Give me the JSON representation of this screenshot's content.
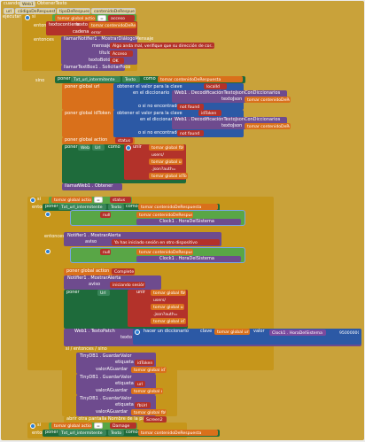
{
  "colors": {
    "event_gold": "#c9a23a",
    "control_gold": "#c6961b",
    "component_green": "#1e6b3b",
    "component_teal": "#39855a",
    "procedure_purple": "#6e4b8e",
    "dict_blue": "#2c59a5",
    "text_red": "#b3322a",
    "variable_orange": "#d9701b",
    "method_purple": "#7b4a9e",
    "logic_green": "#59a646",
    "canvas": "#ececec"
  },
  "event": {
    "when": "cuando",
    "component": "Web1",
    "event_name": "ObtenerTexto",
    "param_url": "url",
    "param_code": "códigoDeRespuesta",
    "param_type": "tipoDeRespuesta",
    "param_content": "contenidoDeRespuesta",
    "do": "ejecutar"
  },
  "b1": {
    "si": "si",
    "get_global": "tomar global action",
    "eq": "=",
    "str_acceso": "acceso",
    "entonces": "entonces",
    "texto": "texto",
    "contiene": "contiene",
    "cadena": "cadena",
    "get_content": "tomar contenidoDeRespuesta",
    "str_error": "error",
    "llamar": "llamar",
    "notif_call": "Notifier1 . MostrarDiálogoMensaje",
    "mensaje": "mensaje",
    "msg": "Algo anda mal, verifique que su dirección de cor...",
    "titulo": "título",
    "str_acceso_title": "Acceso",
    "textoBoton": "textoBotón",
    "str_ok": "OK",
    "focus_call": "TextBox1 . SolicitarFoco",
    "sino": "sino"
  },
  "b2": {
    "poner": "poner",
    "tfurl": "Txt_url_intermitente",
    "texto": "Texto",
    "como": "como",
    "get_content": "tomar contenidoDeRespuesta",
    "poner_global_url": "poner global url",
    "a": "a",
    "obtener": "obtener el valor para la clave",
    "str_localId": "localId",
    "en_dic": "en el diccionario",
    "llamar": "llamar",
    "web1_decode": "Web1 . DecodificaciónTextoJsonConDiccionarios",
    "textoJson": "textoJson",
    "o_si": "o si no encontrado",
    "str_not_found": "not found",
    "poner_global_token": "poner global idToken",
    "str_idToken": "idToken",
    "poner_global_action": "poner global action",
    "str_status": "status",
    "web1_url": "Web1",
    "url": "Url",
    "unir": "unir",
    "get_global_url": "tomar global fbUrl",
    "str_users": "users/",
    "get_user": "tomar global url",
    "str_json": ".json?auth=",
    "get_token": "tomar global idToken",
    "obtener_call": "Web1 . Obtener"
  },
  "b3": {
    "si": "si",
    "get_action": "tomar global action",
    "eq": "=",
    "str_status": "status",
    "entonces": "entonces",
    "poner_txt": "poner",
    "tfurl": "Txt_url_intermitente",
    "texto": "Texto",
    "como": "como",
    "get_content": "tomar contenidoDeRespuesta",
    "null": "null",
    "not": "no",
    "clock_call": "Clock1 . HoraDelSistema",
    "notifier_show": "Notifier1 . MostrarAlerta",
    "aviso": "aviso",
    "str_ya": "Ya has iniciado sesión en otro dispositivo",
    "si2": "si",
    "poner_global_action": "poner global action",
    "str_complete": "Complete",
    "str_iniciando": "iniciando sesión",
    "url": "Url",
    "unir": "unir",
    "get_fb": "tomar global fbUrl",
    "str_users2": "users/",
    "get_user2": "tomar global url",
    "str_json2": ".json?auth=",
    "get_token2": "tomar global idToken",
    "patch": "Web1 . TextoPatch",
    "texto_lbl": "texto",
    "hacer_dic": "hacer un diccionario",
    "clave": "clave",
    "get_url3": "tomar global url",
    "valor": "valor",
    "clock_call2": "Clock1 . HoraDelSistema",
    "num": "95000000"
  },
  "b4": {
    "header": "si / entonces / sino",
    "tiny1": "TinyDB1 . GuardarValor",
    "etiqueta": "etiqueta",
    "str_idToken": "idToken",
    "valorAGuardar": "valorAGuardar",
    "get_token": "tomar global idToken",
    "str_url": "url",
    "get_url": "tomar global url",
    "str_fbUrl": "fbUrl",
    "get_fburl": "tomar global fbUrl",
    "abrir": "abrir otra pantalla   Nombre de la pantalla",
    "str_screen": "Screen2"
  },
  "b5": {
    "si": "si",
    "get_action": "tomar global action",
    "eq": "=",
    "str_damage": "Damage",
    "entonces": "entonces",
    "poner": "poner",
    "tfurl": "Txt_url_intermitente",
    "texto": "Texto",
    "como": "como",
    "get_content": "tomar contenidoDeRespuesta"
  }
}
